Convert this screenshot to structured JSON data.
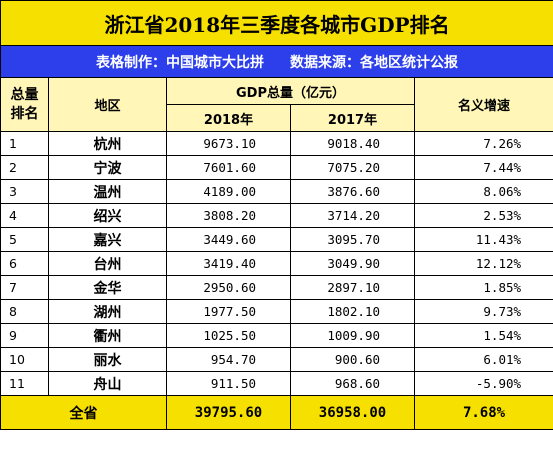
{
  "title": "浙江省2018年三季度各城市GDP排名",
  "subtitle_left": "表格制作：中国城市大比拼",
  "subtitle_right": "数据来源：各地区统计公报",
  "headers": {
    "rank_line1": "总量",
    "rank_line2": "排名",
    "region": "地区",
    "gdp": "GDP总量（亿元）",
    "y2018": "2018年",
    "y2017": "2017年",
    "growth": "名义增速"
  },
  "rows": [
    {
      "rank": "1",
      "city": "杭州",
      "v2018": "9673.10",
      "v2017": "9018.40",
      "growth": "7.26%"
    },
    {
      "rank": "2",
      "city": "宁波",
      "v2018": "7601.60",
      "v2017": "7075.20",
      "growth": "7.44%"
    },
    {
      "rank": "3",
      "city": "温州",
      "v2018": "4189.00",
      "v2017": "3876.60",
      "growth": "8.06%"
    },
    {
      "rank": "4",
      "city": "绍兴",
      "v2018": "3808.20",
      "v2017": "3714.20",
      "growth": "2.53%"
    },
    {
      "rank": "5",
      "city": "嘉兴",
      "v2018": "3449.60",
      "v2017": "3095.70",
      "growth": "11.43%"
    },
    {
      "rank": "6",
      "city": "台州",
      "v2018": "3419.40",
      "v2017": "3049.90",
      "growth": "12.12%"
    },
    {
      "rank": "7",
      "city": "金华",
      "v2018": "2950.60",
      "v2017": "2897.10",
      "growth": "1.85%"
    },
    {
      "rank": "8",
      "city": "湖州",
      "v2018": "1977.50",
      "v2017": "1802.10",
      "growth": "9.73%"
    },
    {
      "rank": "9",
      "city": "衢州",
      "v2018": "1025.50",
      "v2017": "1009.90",
      "growth": "1.54%"
    },
    {
      "rank": "10",
      "city": "丽水",
      "v2018": "954.70",
      "v2017": "900.60",
      "growth": "6.01%"
    },
    {
      "rank": "11",
      "city": "舟山",
      "v2018": "911.50",
      "v2017": "968.60",
      "growth": "-5.90%"
    }
  ],
  "total": {
    "label": "全省",
    "v2018": "39795.60",
    "v2017": "36958.00",
    "growth": "7.68%"
  },
  "colors": {
    "title_bg": "#f6e000",
    "subtitle_bg": "#2c3fea",
    "header_bg": "#fff6b8",
    "total_bg": "#f6e000"
  }
}
